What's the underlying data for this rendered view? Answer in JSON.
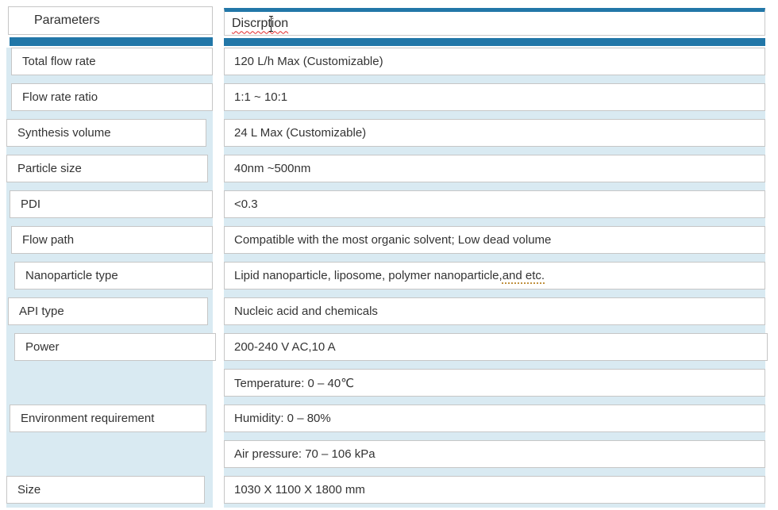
{
  "table": {
    "columns": {
      "parameters": "Parameters",
      "description": "Discrption"
    },
    "rows": [
      {
        "parameter": "Total flow rate",
        "description": "120 L/h Max (Customizable)"
      },
      {
        "parameter": "Flow rate ratio",
        "description": "1:1 ~ 10:1"
      },
      {
        "parameter": "Synthesis volume",
        "description": "24 L Max (Customizable)"
      },
      {
        "parameter": "Particle size",
        "description": "40nm ~500nm"
      },
      {
        "parameter": "PDI",
        "description": "<0.3"
      },
      {
        "parameter": "Flow path",
        "description": "Compatible with the most organic solvent; Low dead volume"
      },
      {
        "parameter": "Nanoparticle type",
        "description_part1": "Lipid nanoparticle, liposome, polymer nanoparticle, ",
        "description_part2_flagged": "and etc."
      },
      {
        "parameter": "API type",
        "description": "Nucleic acid and chemicals"
      },
      {
        "parameter": "Power",
        "description": "200-240 V AC,10 A"
      }
    ],
    "environment": {
      "parameter": "Environment requirement",
      "descriptions": [
        "Temperature: 0 – 40℃",
        "Humidity: 0 – 80%",
        "Air pressure: 70 – 106 kPa"
      ]
    },
    "size_row": {
      "parameter": "Size",
      "description": "1030 X 1100 X 1800 mm"
    }
  },
  "colors": {
    "accent_blue": "#2277a8",
    "row_gap_blue": "#d9eaf2",
    "cell_border": "#c6c6c6",
    "spellcheck_red": "#e52b2b",
    "grammar_gold": "#c09140"
  }
}
